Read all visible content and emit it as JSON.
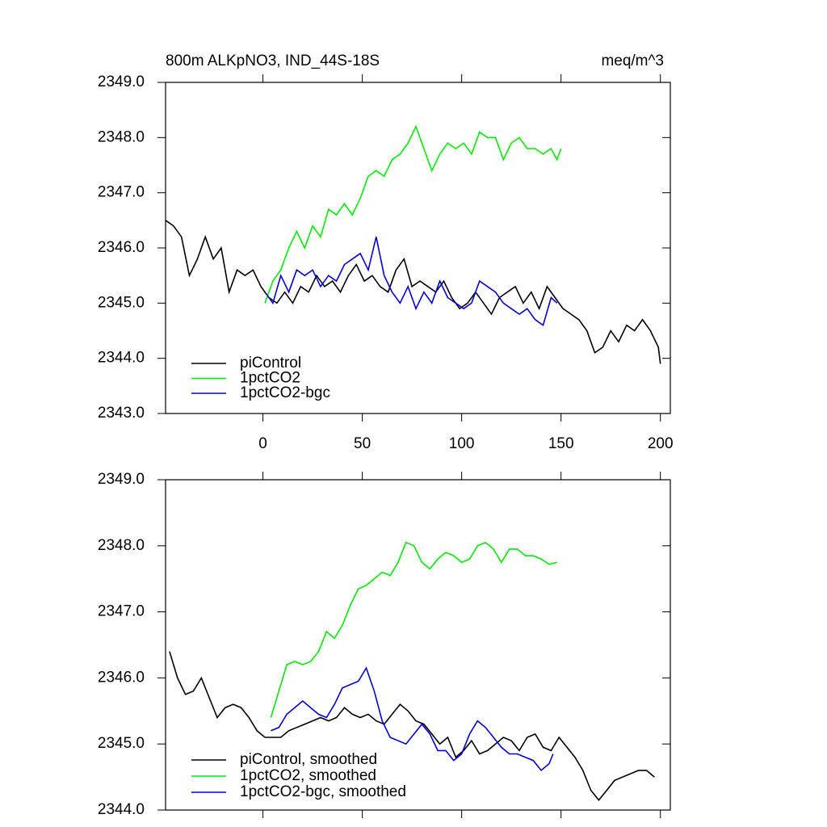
{
  "chart_data": [
    {
      "type": "line",
      "title": "800m ALKpNO3, IND_44S-18S",
      "units_label": "meq/m^3",
      "xlim": [
        -49,
        205
      ],
      "xticks": [
        0,
        50,
        100,
        150,
        200
      ],
      "ylim": [
        2343,
        2349
      ],
      "yticks": [
        {
          "value": 2343,
          "label": "2343.0"
        },
        {
          "value": 2344,
          "label": "2344.0"
        },
        {
          "value": 2345,
          "label": "2345.0"
        },
        {
          "value": 2346,
          "label": "2346.0"
        },
        {
          "value": 2347,
          "label": "2347.0"
        },
        {
          "value": 2348,
          "label": "2348.0"
        },
        {
          "value": 2349,
          "label": "2349.0"
        }
      ],
      "legend": "lower left",
      "series": [
        {
          "name": "piControl",
          "color": "#000000",
          "x": [
            -49,
            -45,
            -41,
            -37,
            -33,
            -29,
            -25,
            -21,
            -17,
            -13,
            -9,
            -5,
            -1,
            3,
            7,
            11,
            15,
            19,
            23,
            27,
            31,
            35,
            39,
            43,
            47,
            51,
            55,
            59,
            63,
            67,
            71,
            75,
            79,
            83,
            87,
            91,
            95,
            99,
            103,
            107,
            111,
            115,
            119,
            123,
            127,
            131,
            135,
            139,
            143,
            147,
            151,
            155,
            159,
            163,
            167,
            171,
            175,
            179,
            183,
            187,
            191,
            195,
            199,
            200
          ],
          "values": [
            2346.5,
            2346.4,
            2346.2,
            2345.5,
            2345.8,
            2346.2,
            2345.8,
            2346.0,
            2345.2,
            2345.6,
            2345.5,
            2345.6,
            2345.3,
            2345.1,
            2345.0,
            2345.2,
            2345.0,
            2345.3,
            2345.2,
            2345.5,
            2345.3,
            2345.4,
            2345.2,
            2345.5,
            2345.7,
            2345.4,
            2345.5,
            2345.3,
            2345.2,
            2345.6,
            2345.8,
            2345.3,
            2345.4,
            2345.3,
            2345.2,
            2345.4,
            2345.1,
            2344.9,
            2345.0,
            2345.2,
            2345.0,
            2344.8,
            2345.1,
            2345.2,
            2345.3,
            2345.0,
            2345.2,
            2344.9,
            2345.3,
            2345.1,
            2344.9,
            2344.8,
            2344.7,
            2344.5,
            2344.1,
            2344.2,
            2344.5,
            2344.3,
            2344.6,
            2344.5,
            2344.7,
            2344.5,
            2344.2,
            2343.9
          ]
        },
        {
          "name": "1pctCO2",
          "color": "#00ee00",
          "x": [
            1,
            5,
            9,
            13,
            17,
            21,
            25,
            29,
            33,
            37,
            41,
            45,
            49,
            53,
            57,
            61,
            65,
            69,
            73,
            77,
            81,
            85,
            89,
            93,
            97,
            101,
            105,
            109,
            113,
            117,
            121,
            125,
            129,
            133,
            137,
            141,
            145,
            148,
            150
          ],
          "values": [
            2345.0,
            2345.4,
            2345.6,
            2346.0,
            2346.3,
            2346.0,
            2346.4,
            2346.2,
            2346.7,
            2346.6,
            2346.8,
            2346.6,
            2346.9,
            2347.3,
            2347.4,
            2347.3,
            2347.6,
            2347.7,
            2347.9,
            2348.2,
            2347.8,
            2347.4,
            2347.7,
            2347.9,
            2347.8,
            2347.9,
            2347.7,
            2348.1,
            2348.0,
            2348.0,
            2347.6,
            2347.9,
            2348.0,
            2347.8,
            2347.8,
            2347.7,
            2347.8,
            2347.6,
            2347.8
          ]
        },
        {
          "name": "1pctCO2-bgc",
          "color": "#0000dd",
          "x": [
            1,
            5,
            9,
            13,
            17,
            21,
            25,
            29,
            33,
            37,
            41,
            45,
            49,
            53,
            57,
            61,
            65,
            69,
            73,
            77,
            81,
            85,
            89,
            93,
            97,
            101,
            105,
            109,
            113,
            117,
            121,
            125,
            129,
            133,
            137,
            141,
            145,
            148
          ],
          "values": [
            2345.2,
            2345.0,
            2345.5,
            2345.2,
            2345.6,
            2345.5,
            2345.6,
            2345.3,
            2345.5,
            2345.4,
            2345.7,
            2345.8,
            2345.9,
            2345.6,
            2346.2,
            2345.5,
            2345.2,
            2345.0,
            2345.3,
            2344.9,
            2345.2,
            2345.0,
            2345.4,
            2345.1,
            2345.0,
            2344.9,
            2345.0,
            2345.4,
            2345.3,
            2345.2,
            2345.0,
            2344.9,
            2344.8,
            2344.9,
            2344.7,
            2344.6,
            2345.1,
            2345.0
          ]
        }
      ]
    },
    {
      "type": "line",
      "xlim": [
        -49,
        205
      ],
      "xticks": [
        0,
        50,
        100,
        150,
        200
      ],
      "ylim": [
        2344,
        2349
      ],
      "yticks": [
        {
          "value": 2344,
          "label": "2344.0"
        },
        {
          "value": 2345,
          "label": "2345.0"
        },
        {
          "value": 2346,
          "label": "2346.0"
        },
        {
          "value": 2347,
          "label": "2347.0"
        },
        {
          "value": 2348,
          "label": "2348.0"
        },
        {
          "value": 2349,
          "label": "2349.0"
        }
      ],
      "legend": "lower left",
      "series": [
        {
          "name": "piControl, smoothed",
          "color": "#000000",
          "x": [
            -47,
            -43,
            -39,
            -35,
            -31,
            -27,
            -23,
            -19,
            -15,
            -11,
            -7,
            -3,
            1,
            5,
            9,
            13,
            17,
            21,
            25,
            29,
            33,
            37,
            41,
            45,
            49,
            53,
            57,
            61,
            65,
            69,
            73,
            77,
            81,
            85,
            89,
            93,
            97,
            101,
            105,
            109,
            113,
            117,
            121,
            125,
            129,
            133,
            137,
            141,
            145,
            149,
            153,
            157,
            161,
            165,
            169,
            173,
            177,
            181,
            185,
            189,
            193,
            197
          ],
          "values": [
            2346.4,
            2346.0,
            2345.75,
            2345.8,
            2346.0,
            2345.7,
            2345.4,
            2345.55,
            2345.6,
            2345.55,
            2345.4,
            2345.2,
            2345.1,
            2345.1,
            2345.1,
            2345.2,
            2345.25,
            2345.3,
            2345.35,
            2345.4,
            2345.35,
            2345.4,
            2345.55,
            2345.45,
            2345.4,
            2345.45,
            2345.35,
            2345.3,
            2345.45,
            2345.6,
            2345.5,
            2345.35,
            2345.3,
            2345.15,
            2345.0,
            2345.1,
            2344.8,
            2344.9,
            2345.05,
            2344.85,
            2344.9,
            2345.0,
            2345.1,
            2345.05,
            2344.9,
            2345.1,
            2345.15,
            2344.95,
            2344.9,
            2345.1,
            2344.95,
            2344.8,
            2344.6,
            2344.3,
            2344.15,
            2344.3,
            2344.45,
            2344.5,
            2344.55,
            2344.6,
            2344.6,
            2344.5
          ]
        },
        {
          "name": "1pctCO2, smoothed",
          "color": "#00ee00",
          "x": [
            4,
            8,
            12,
            16,
            20,
            24,
            28,
            32,
            36,
            40,
            44,
            48,
            52,
            56,
            60,
            64,
            68,
            72,
            76,
            80,
            84,
            88,
            92,
            96,
            100,
            104,
            108,
            112,
            116,
            120,
            124,
            128,
            132,
            136,
            140,
            144,
            148
          ],
          "values": [
            2345.4,
            2345.8,
            2346.2,
            2346.25,
            2346.2,
            2346.25,
            2346.4,
            2346.7,
            2346.6,
            2346.8,
            2347.1,
            2347.35,
            2347.4,
            2347.5,
            2347.6,
            2347.55,
            2347.75,
            2348.05,
            2348.0,
            2347.75,
            2347.65,
            2347.8,
            2347.9,
            2347.85,
            2347.75,
            2347.8,
            2348.0,
            2348.05,
            2347.95,
            2347.75,
            2347.95,
            2347.95,
            2347.85,
            2347.85,
            2347.8,
            2347.72,
            2347.75
          ]
        },
        {
          "name": "1pctCO2-bgc, smoothed",
          "color": "#0000dd",
          "x": [
            4,
            8,
            12,
            16,
            20,
            24,
            28,
            32,
            36,
            40,
            44,
            48,
            52,
            56,
            60,
            64,
            68,
            72,
            76,
            80,
            84,
            88,
            92,
            96,
            100,
            104,
            108,
            112,
            116,
            120,
            124,
            128,
            132,
            136,
            140,
            144,
            146
          ],
          "values": [
            2345.2,
            2345.25,
            2345.45,
            2345.55,
            2345.65,
            2345.55,
            2345.45,
            2345.4,
            2345.6,
            2345.85,
            2345.9,
            2345.95,
            2346.15,
            2345.8,
            2345.35,
            2345.1,
            2345.05,
            2345.0,
            2345.15,
            2345.3,
            2345.15,
            2344.9,
            2344.9,
            2344.75,
            2344.85,
            2345.15,
            2345.35,
            2345.25,
            2345.1,
            2344.95,
            2344.85,
            2344.85,
            2344.8,
            2344.75,
            2344.6,
            2344.7,
            2344.85
          ]
        }
      ]
    }
  ]
}
